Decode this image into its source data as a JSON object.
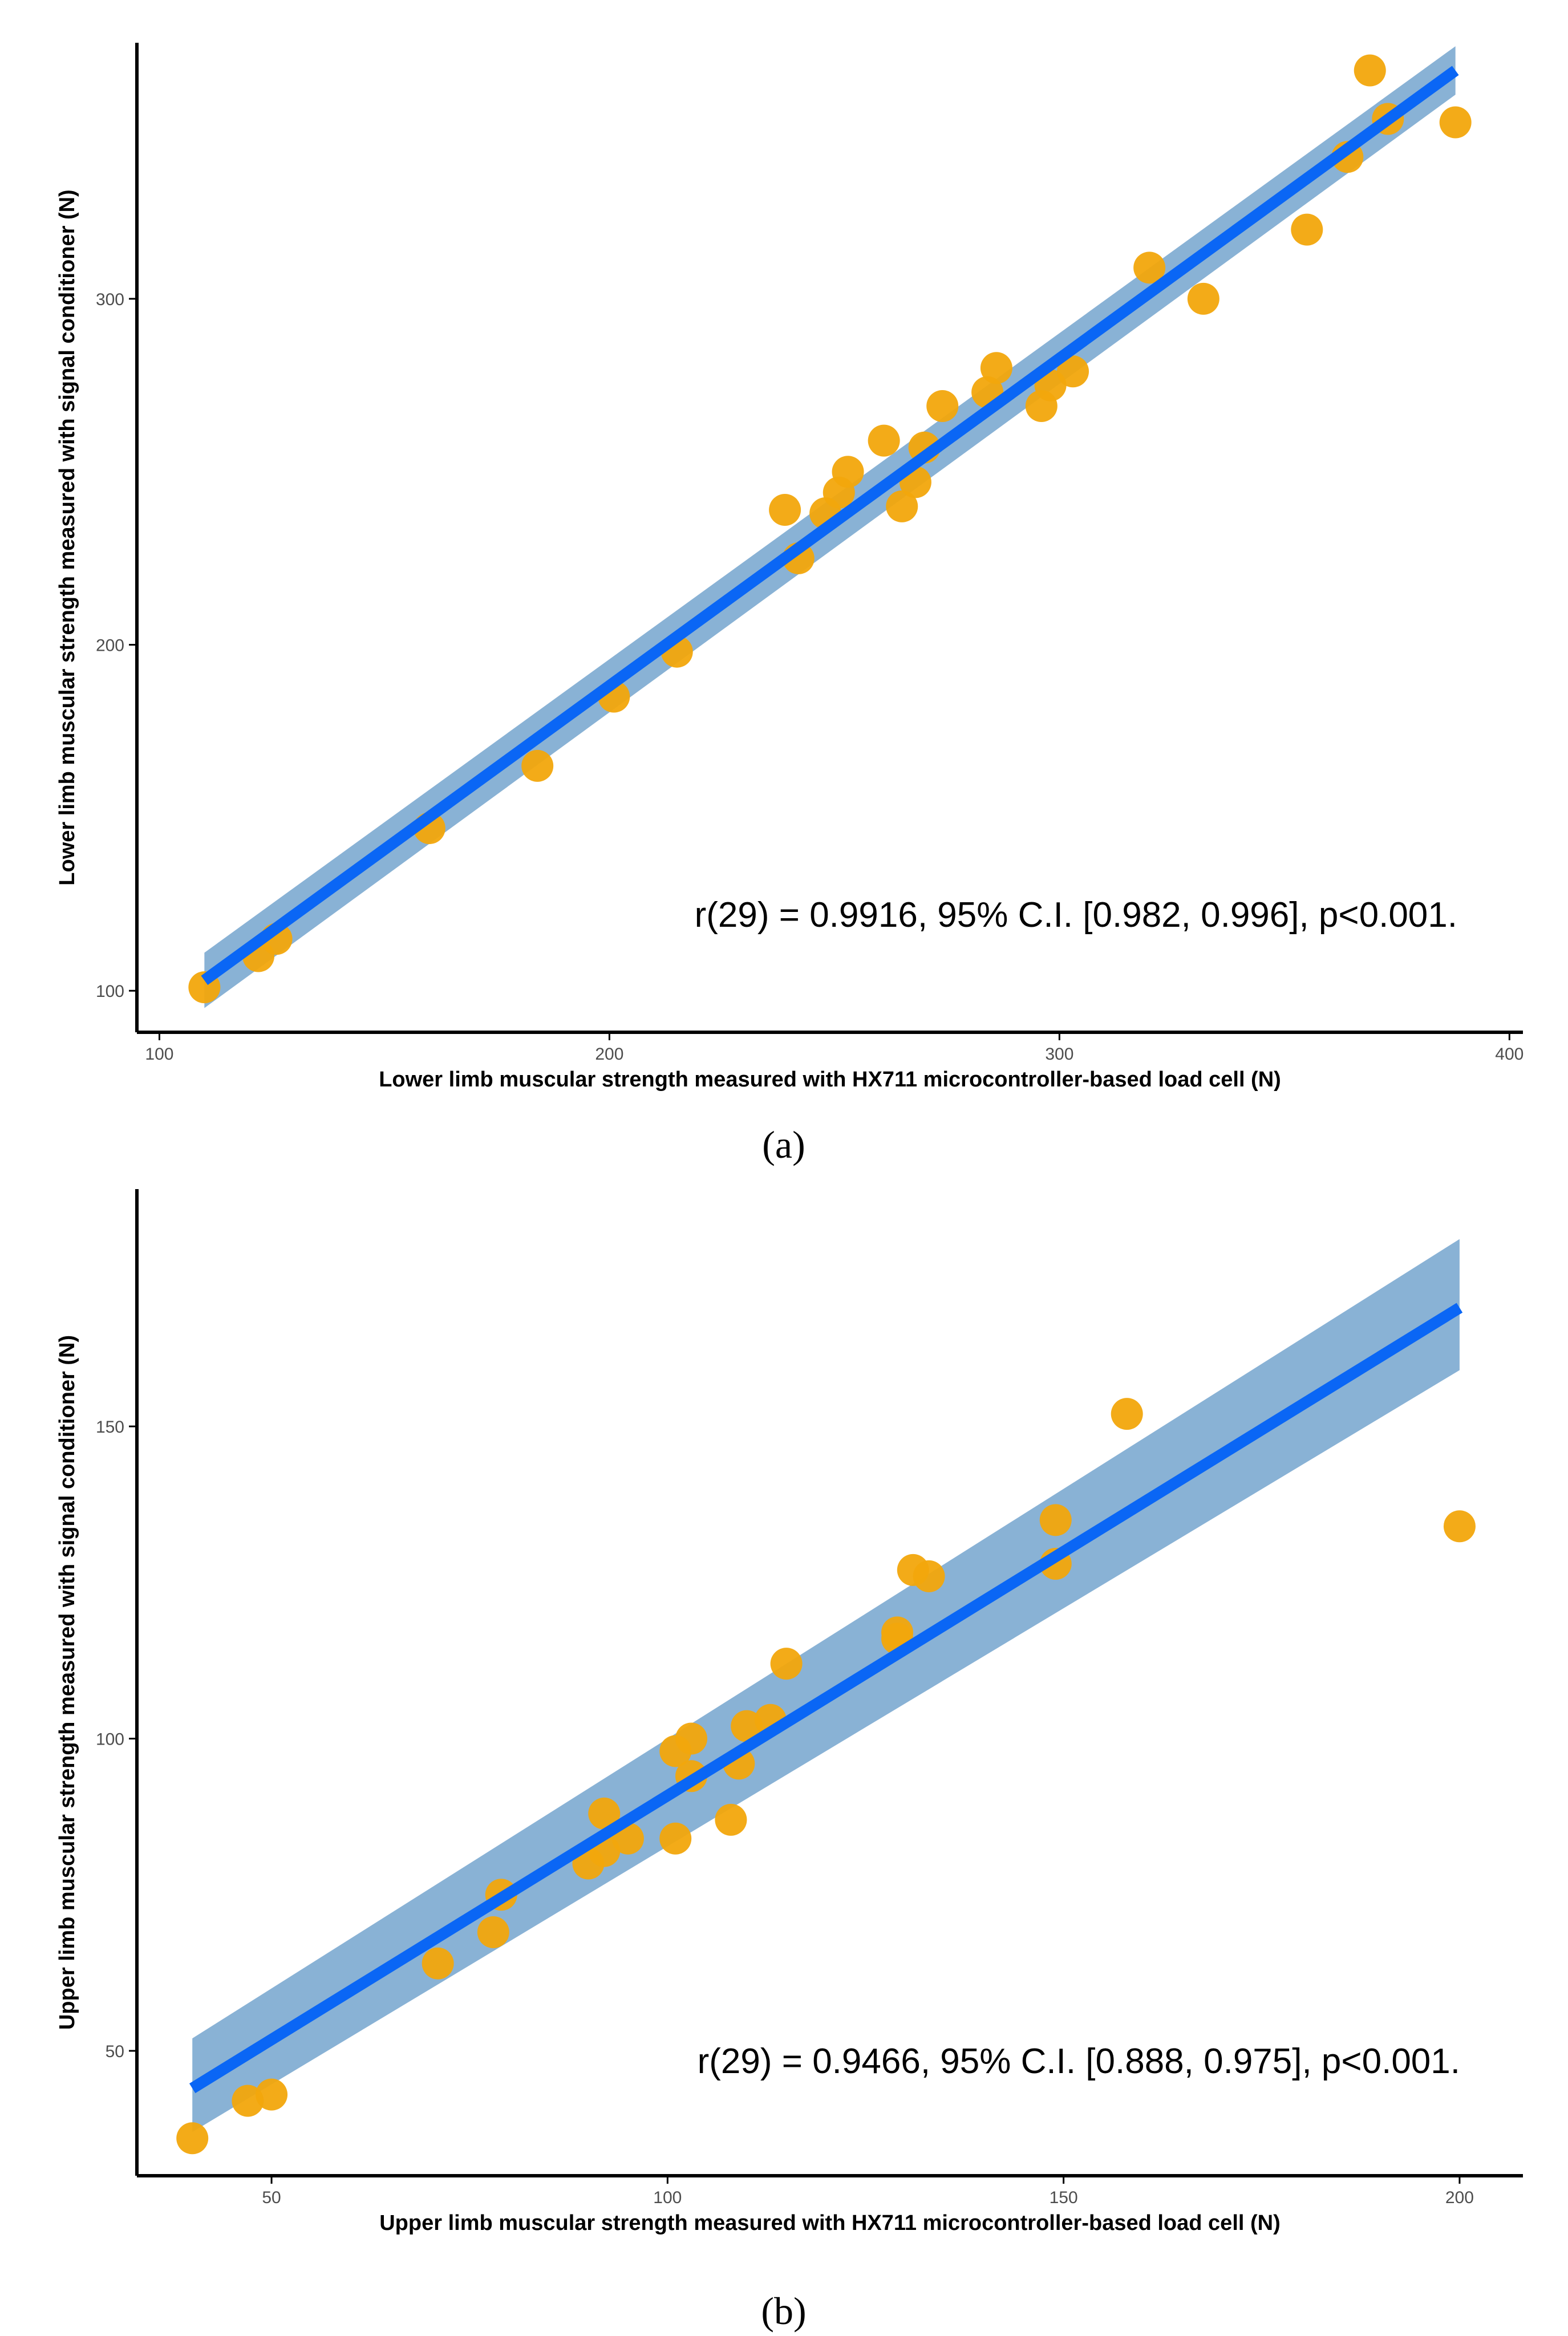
{
  "colors": {
    "point": "#f2a60c",
    "line": "#0a66f5",
    "band": "#6b9fca",
    "axis": "#000000"
  },
  "chart_data": [
    {
      "type": "scatter",
      "panel": "(a)",
      "xlabel": "Lower limb muscular strength measured with HX711 microcontroller-based load cell (N)",
      "ylabel": "Lower limb muscular strength measured with signal conditioner (N)",
      "xlim": [
        95,
        403
      ],
      "ylim": [
        88,
        374
      ],
      "x_ticks": [
        100,
        200,
        300,
        400
      ],
      "y_ticks": [
        100,
        200,
        300
      ],
      "x_tick_labels": [
        "100",
        "200",
        "300",
        "400"
      ],
      "y_tick_labels": [
        "100",
        "200",
        "300"
      ],
      "annotation": "r(29) = 0.9916, 95% C.I. [0.982, 0.996], p<0.001.",
      "points": [
        [
          110,
          101
        ],
        [
          122,
          110
        ],
        [
          126,
          115
        ],
        [
          160,
          147
        ],
        [
          184,
          165
        ],
        [
          201,
          185
        ],
        [
          215,
          198
        ],
        [
          239,
          239
        ],
        [
          242,
          225
        ],
        [
          248,
          238
        ],
        [
          251,
          244
        ],
        [
          253,
          250
        ],
        [
          261,
          259
        ],
        [
          265,
          240
        ],
        [
          268,
          247
        ],
        [
          270,
          257
        ],
        [
          274,
          269
        ],
        [
          284,
          273
        ],
        [
          286,
          280
        ],
        [
          296,
          269
        ],
        [
          298,
          275
        ],
        [
          303,
          279
        ],
        [
          320,
          309
        ],
        [
          332,
          300
        ],
        [
          355,
          320
        ],
        [
          364,
          341
        ],
        [
          369,
          366
        ],
        [
          373,
          352
        ],
        [
          388,
          351
        ]
      ],
      "fit": {
        "x_start": 110,
        "x_end": 388,
        "y_start": 103,
        "y_end": 366,
        "ci_start": [
          95,
          111
        ],
        "ci_end": [
          359,
          373
        ]
      }
    },
    {
      "type": "scatter",
      "panel": "(b)",
      "xlabel": "Upper limb muscular strength measured with HX711 microcontroller-based load cell (N)",
      "ylabel": "Upper limb muscular strength measured with signal conditioner (N)",
      "xlim": [
        33,
        208
      ],
      "ylim": [
        30,
        188
      ],
      "x_ticks": [
        50,
        100,
        150,
        200
      ],
      "y_ticks": [
        50,
        100,
        150
      ],
      "x_tick_labels": [
        "50",
        "100",
        "150",
        "200"
      ],
      "y_tick_labels": [
        "50",
        "100",
        "150"
      ],
      "annotation": "r(29) = 0.9466, 95% C.I. [0.888, 0.975], p<0.001.",
      "points": [
        [
          40,
          36
        ],
        [
          47,
          42
        ],
        [
          50,
          43
        ],
        [
          71,
          64
        ],
        [
          78,
          69
        ],
        [
          79,
          75
        ],
        [
          90,
          80
        ],
        [
          92,
          82
        ],
        [
          92,
          88
        ],
        [
          95,
          84
        ],
        [
          101,
          84
        ],
        [
          101,
          98
        ],
        [
          103,
          100
        ],
        [
          103,
          94
        ],
        [
          108,
          87
        ],
        [
          109,
          96
        ],
        [
          110,
          102
        ],
        [
          113,
          103
        ],
        [
          115,
          112
        ],
        [
          129,
          117
        ],
        [
          129,
          116
        ],
        [
          131,
          127
        ],
        [
          133,
          126
        ],
        [
          149,
          128
        ],
        [
          149,
          135
        ],
        [
          158,
          152
        ],
        [
          200,
          134
        ]
      ],
      "fit": {
        "x_start": 40,
        "x_end": 200,
        "y_start": 44,
        "y_end": 169,
        "ci_start": [
          37,
          52
        ],
        "ci_end": [
          159,
          180
        ]
      }
    }
  ]
}
